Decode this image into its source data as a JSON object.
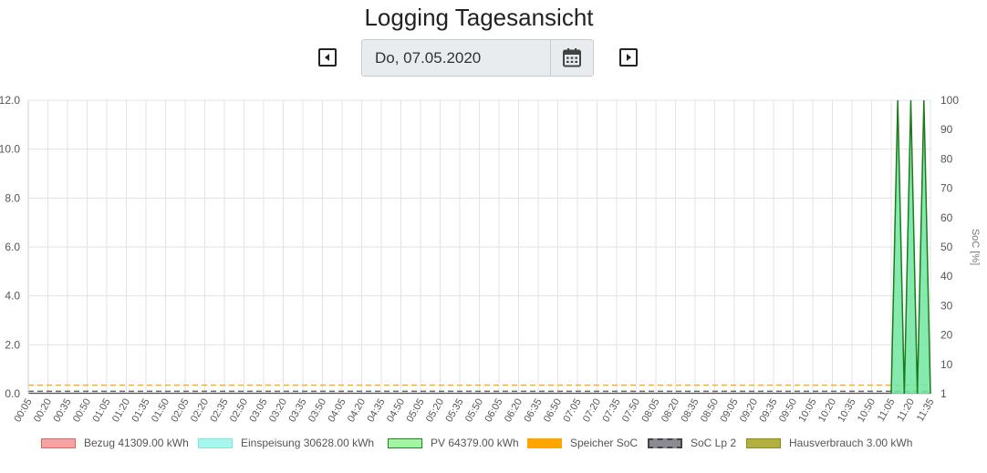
{
  "header": {
    "title": "Logging Tagesansicht",
    "date_value": "Do, 07.05.2020"
  },
  "icons": {
    "prev": "caret-left-square-icon",
    "next": "caret-right-square-icon",
    "calendar": "calendar-icon"
  },
  "chart_data": {
    "type": "area",
    "x_labels": [
      "00:05",
      "00:20",
      "00:35",
      "00:50",
      "01:05",
      "01:20",
      "01:35",
      "01:50",
      "02:05",
      "02:20",
      "02:35",
      "02:50",
      "03:05",
      "03:20",
      "03:35",
      "03:50",
      "04:05",
      "04:20",
      "04:35",
      "04:50",
      "05:05",
      "05:20",
      "05:35",
      "05:50",
      "06:05",
      "06:20",
      "06:35",
      "06:50",
      "07:05",
      "07:20",
      "07:35",
      "07:50",
      "08:05",
      "08:20",
      "08:35",
      "08:50",
      "09:05",
      "09:20",
      "09:35",
      "09:50",
      "10:05",
      "10:20",
      "10:35",
      "10:50",
      "11:05",
      "11:20",
      "11:35"
    ],
    "y_left": {
      "min": 0,
      "max": 12,
      "ticks": [
        "0.0",
        "2.0",
        "4.0",
        "6.0",
        "8.0",
        "10.0",
        "12.0"
      ]
    },
    "y_right": {
      "label": "SoC [%]",
      "ticks": [
        "1",
        "10",
        "20",
        "30",
        "40",
        "50",
        "60",
        "70",
        "80",
        "90",
        "100"
      ]
    },
    "grid": true,
    "legend_position": "bottom",
    "pv_points": [
      {
        "x": "11:05",
        "y": 0
      },
      {
        "x": "11:10",
        "y": 12
      },
      {
        "x": "11:15",
        "y": 0
      },
      {
        "x": "11:20",
        "y": 12
      },
      {
        "x": "11:25",
        "y": 0
      },
      {
        "x": "11:30",
        "y": 12
      },
      {
        "x": "11:35",
        "y": 0
      }
    ],
    "speicher_soc_y": 0.35,
    "soc_lp2_y": 0.1,
    "series": [
      {
        "name": "Bezug 41309.00 kWh",
        "fill": "#f5a3a3",
        "stroke": "#e06666",
        "style": "solid"
      },
      {
        "name": "Einspeisung 30628.00 kWh",
        "fill": "#a7f7ee",
        "stroke": "#7fe6da",
        "style": "solid"
      },
      {
        "name": "PV 64379.00 kWh",
        "fill": "#a3f5a3",
        "stroke": "#1e8a1e",
        "style": "solid"
      },
      {
        "name": "Speicher SoC",
        "fill": "#ffa500",
        "stroke": "#ffa500",
        "style": "dashed"
      },
      {
        "name": "SoC Lp 2",
        "fill": "#8a8a90",
        "stroke": "#444",
        "style": "dashed"
      },
      {
        "name": "Hausverbrauch 3.00 kWh",
        "fill": "#b3b040",
        "stroke": "#8a8a20",
        "style": "solid"
      }
    ]
  }
}
